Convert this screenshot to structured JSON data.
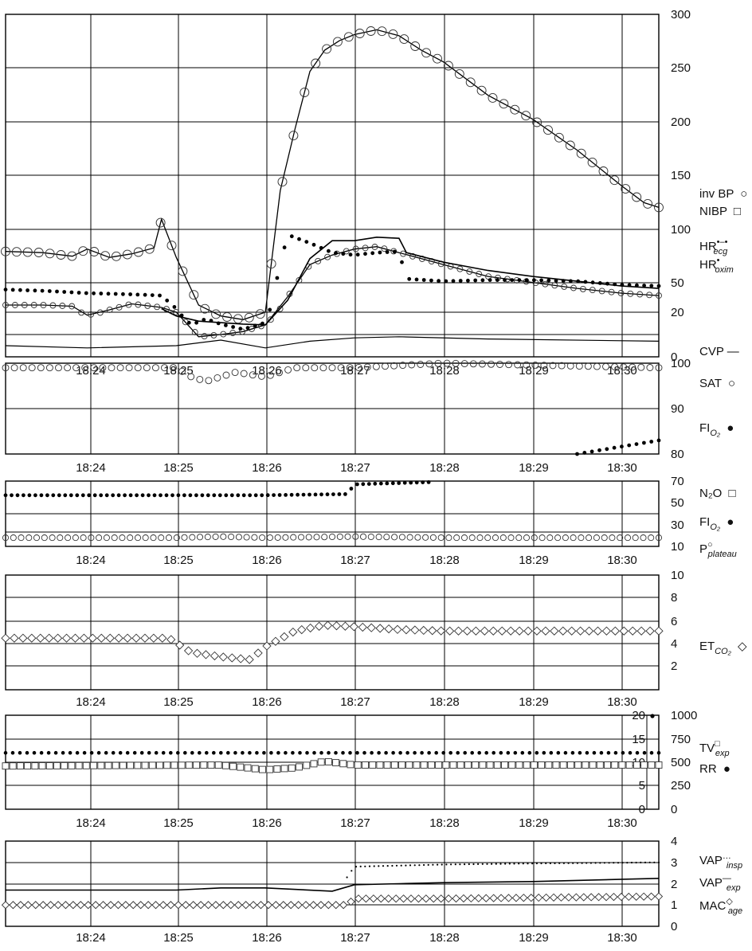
{
  "x_ticks": [
    "18:24",
    "18:25",
    "18:26",
    "18:27",
    "18:28",
    "18:29",
    "18:30"
  ],
  "chart_data": [
    {
      "type": "line",
      "title": "",
      "x_unit": "time",
      "x_range": [
        "18:23:05",
        "18:30:25"
      ],
      "y_ticks_right": [
        "300",
        "250",
        "200",
        "150",
        "100",
        "50",
        "20",
        "0"
      ],
      "legend": [
        {
          "base": "inv BP",
          "sub": "",
          "sup": "",
          "marker": "○"
        },
        {
          "base": "NIBP",
          "sub": "",
          "sup": "",
          "marker": "□"
        },
        {
          "base": "HR",
          "sub": "ecg",
          "sup": "•–•",
          "marker": ""
        },
        {
          "base": "HR",
          "sub": "oxim",
          "sup": "•",
          "marker": ""
        },
        {
          "base": "CVP —",
          "sub": "",
          "sup": "",
          "marker": ""
        }
      ],
      "series": [
        {
          "name": "inv BP sys",
          "style": "line-circles",
          "x": [
            "18:23:05",
            "18:23:30",
            "18:23:50",
            "18:24:00",
            "18:24:15",
            "18:24:30",
            "18:24:45",
            "18:24:50",
            "18:25:00",
            "18:25:15",
            "18:25:30",
            "18:25:45",
            "18:26:00",
            "18:26:10",
            "18:26:20",
            "18:26:30",
            "18:26:40",
            "18:26:50",
            "18:27:00",
            "18:27:15",
            "18:27:30",
            "18:27:45",
            "18:28:00",
            "18:28:30",
            "18:29:00",
            "18:29:30",
            "18:30:00",
            "18:30:15",
            "18:30:25"
          ],
          "y": [
            101,
            100,
            97,
            103,
            96,
            99,
            104,
            128,
            96,
            56,
            45,
            40,
            50,
            152,
            204,
            252,
            270,
            278,
            283,
            287,
            282,
            270,
            260,
            232,
            212,
            186,
            156,
            142,
            138
          ]
        },
        {
          "name": "inv BP dia",
          "style": "line-circles",
          "x": [
            "18:23:05",
            "18:23:30",
            "18:23:50",
            "18:24:00",
            "18:24:15",
            "18:24:30",
            "18:24:50",
            "18:25:00",
            "18:25:15",
            "18:25:30",
            "18:25:45",
            "18:26:00",
            "18:26:15",
            "18:26:30",
            "18:26:45",
            "18:27:00",
            "18:27:15",
            "18:27:30",
            "18:28:00",
            "18:28:30",
            "18:29:00",
            "18:29:30",
            "18:30:00",
            "18:30:25"
          ],
          "y": [
            56,
            56,
            55,
            46,
            52,
            57,
            54,
            50,
            18,
            20,
            24,
            33,
            63,
            90,
            98,
            103,
            105,
            100,
            90,
            80,
            75,
            70,
            66,
            64
          ]
        },
        {
          "name": "NIBP",
          "style": "line",
          "x": [
            "18:24:50",
            "18:25:00",
            "18:25:15",
            "18:25:30",
            "18:25:45",
            "18:26:00",
            "18:26:15",
            "18:26:30",
            "18:26:45",
            "18:27:00",
            "18:27:15",
            "18:27:30",
            "18:27:35",
            "18:28:00",
            "18:28:30",
            "18:29:00",
            "18:29:30",
            "18:30:00",
            "18:30:25"
          ],
          "y": [
            53,
            45,
            38,
            36,
            34,
            33,
            60,
            95,
            110,
            110,
            113,
            112,
            100,
            92,
            85,
            80,
            76,
            72,
            70
          ]
        },
        {
          "name": "HR ecg",
          "style": "dots",
          "x": [
            "18:23:05",
            "18:23:30",
            "18:24:00",
            "18:24:30",
            "18:24:50",
            "18:25:00",
            "18:25:10",
            "18:25:20",
            "18:25:30",
            "18:25:45",
            "18:26:00",
            "18:26:10",
            "18:26:15",
            "18:26:30",
            "18:26:45",
            "18:27:00",
            "18:27:15",
            "18:27:30",
            "18:27:35",
            "18:28:00",
            "18:28:30",
            "18:29:00",
            "18:29:30",
            "18:30:00",
            "18:30:25"
          ],
          "y": [
            69,
            68,
            66,
            65,
            64,
            53,
            33,
            41,
            34,
            27,
            36,
            90,
            115,
            108,
            100,
            98,
            100,
            101,
            78,
            76,
            77,
            77,
            76,
            73,
            72
          ]
        }
      ],
      "cvp": {
        "name": "CVP",
        "x": [
          "18:23:05",
          "18:24:00",
          "18:25:00",
          "18:25:30",
          "18:26:00",
          "18:26:30",
          "18:27:00",
          "18:27:30",
          "18:28:30",
          "18:30:25"
        ],
        "y": [
          10,
          8,
          10,
          15,
          8,
          14,
          17,
          18,
          16,
          14
        ]
      }
    },
    {
      "type": "scatter",
      "y_ticks_right": [
        "100",
        "90",
        "80"
      ],
      "legend": [
        {
          "base": "SAT",
          "sub": "",
          "sup": "",
          "marker": "○"
        },
        {
          "base": "FI",
          "sub": "O₂",
          "sup": "",
          "marker": "●"
        }
      ],
      "series": [
        {
          "name": "SAT",
          "x": [
            "18:23:05",
            "18:24:00",
            "18:25:00",
            "18:25:10",
            "18:25:20",
            "18:25:40",
            "18:26:00",
            "18:26:20",
            "18:27:00",
            "18:28:00",
            "18:30:25"
          ],
          "y": [
            99,
            99,
            99,
            97,
            96,
            98,
            97,
            99,
            99,
            100,
            99
          ]
        },
        {
          "name": "FIO2",
          "x": [
            "18:29:30",
            "18:30:25"
          ],
          "y": [
            80,
            83
          ]
        }
      ]
    },
    {
      "type": "scatter",
      "y_ticks_right": [
        "70",
        "50",
        "30",
        "10"
      ],
      "legend": [
        {
          "base": "N₂O",
          "sub": "",
          "sup": "",
          "marker": "□"
        },
        {
          "base": "FI",
          "sub": "O₂",
          "sup": "",
          "marker": "●"
        },
        {
          "base": "P",
          "sub": "plateau",
          "sup": "○",
          "marker": ""
        }
      ],
      "series": [
        {
          "name": "FIO2",
          "x": [
            "18:23:05",
            "18:24:00",
            "18:25:00",
            "18:26:00",
            "18:26:55",
            "18:27:00",
            "18:27:50"
          ],
          "y": [
            57,
            57,
            57,
            57,
            58,
            67,
            69
          ]
        },
        {
          "name": "P plateau",
          "x": [
            "18:23:05",
            "18:24:00",
            "18:25:00",
            "18:25:30",
            "18:26:00",
            "18:27:00",
            "18:28:00",
            "18:30:25"
          ],
          "y": [
            18,
            18,
            18,
            19,
            18,
            19,
            18,
            18
          ]
        }
      ]
    },
    {
      "type": "scatter",
      "y_ticks_right": [
        "10",
        "8",
        "6",
        "4",
        "2"
      ],
      "legend": [
        {
          "base": "ET",
          "sub": "CO₂",
          "sup": "",
          "marker": "◇"
        }
      ],
      "series": [
        {
          "name": "ETCO2",
          "x": [
            "18:23:05",
            "18:24:00",
            "18:24:55",
            "18:25:10",
            "18:25:30",
            "18:25:50",
            "18:26:00",
            "18:26:20",
            "18:26:40",
            "18:27:00",
            "18:27:30",
            "18:28:00",
            "18:30:25"
          ],
          "y": [
            5.6,
            5.6,
            5.6,
            4.6,
            4.3,
            4.1,
            5.0,
            6.1,
            6.5,
            6.4,
            6.2,
            6.1,
            6.1
          ]
        }
      ]
    },
    {
      "type": "scatter",
      "y_ticks_right": [
        "1000",
        "750",
        "500",
        "250",
        "0"
      ],
      "y_ticks_inner": [
        "20",
        "15",
        "10",
        "5",
        "0"
      ],
      "legend": [
        {
          "base": "TV",
          "sub": "exp",
          "sup": "□",
          "marker": ""
        },
        {
          "base": "RR",
          "sub": "",
          "sup": "",
          "marker": "●"
        }
      ],
      "series": [
        {
          "name": "RR",
          "x": [
            "18:23:05",
            "18:30:25"
          ],
          "y": [
            12,
            12
          ]
        },
        {
          "name": "TV exp",
          "x": [
            "18:23:05",
            "18:25:30",
            "18:26:00",
            "18:26:20",
            "18:26:40",
            "18:27:00",
            "18:30:25"
          ],
          "y": [
            460,
            470,
            420,
            440,
            510,
            470,
            470
          ]
        }
      ]
    },
    {
      "type": "line",
      "y_ticks_right": [
        "4",
        "3",
        "2",
        "1",
        "0"
      ],
      "legend": [
        {
          "base": "VAP",
          "sub": "insp",
          "sup": "…",
          "marker": ""
        },
        {
          "base": "VAP",
          "sub": "exp",
          "sup": "—",
          "marker": ""
        },
        {
          "base": "MAC",
          "sub": "age",
          "sup": "◇",
          "marker": ""
        }
      ],
      "series": [
        {
          "name": "VAP insp",
          "x": [
            "18:26:55",
            "18:27:00",
            "18:27:30",
            "18:28:00",
            "18:29:00",
            "18:30:25"
          ],
          "y": [
            2.3,
            2.8,
            2.85,
            2.9,
            2.95,
            3.0
          ]
        },
        {
          "name": "VAP exp",
          "x": [
            "18:23:05",
            "18:24:00",
            "18:25:00",
            "18:25:30",
            "18:26:00",
            "18:26:45",
            "18:27:00",
            "18:27:30",
            "18:28:00",
            "18:29:00",
            "18:30:25"
          ],
          "y": [
            1.7,
            1.7,
            1.7,
            1.8,
            1.8,
            1.65,
            1.95,
            2.0,
            2.05,
            2.1,
            2.25
          ]
        },
        {
          "name": "MAC age",
          "x": [
            "18:23:05",
            "18:24:00",
            "18:25:00",
            "18:26:00",
            "18:26:55",
            "18:27:00",
            "18:28:00",
            "18:30:25"
          ],
          "y": [
            1.0,
            1.0,
            1.0,
            1.0,
            1.0,
            1.3,
            1.3,
            1.4
          ]
        }
      ]
    }
  ]
}
